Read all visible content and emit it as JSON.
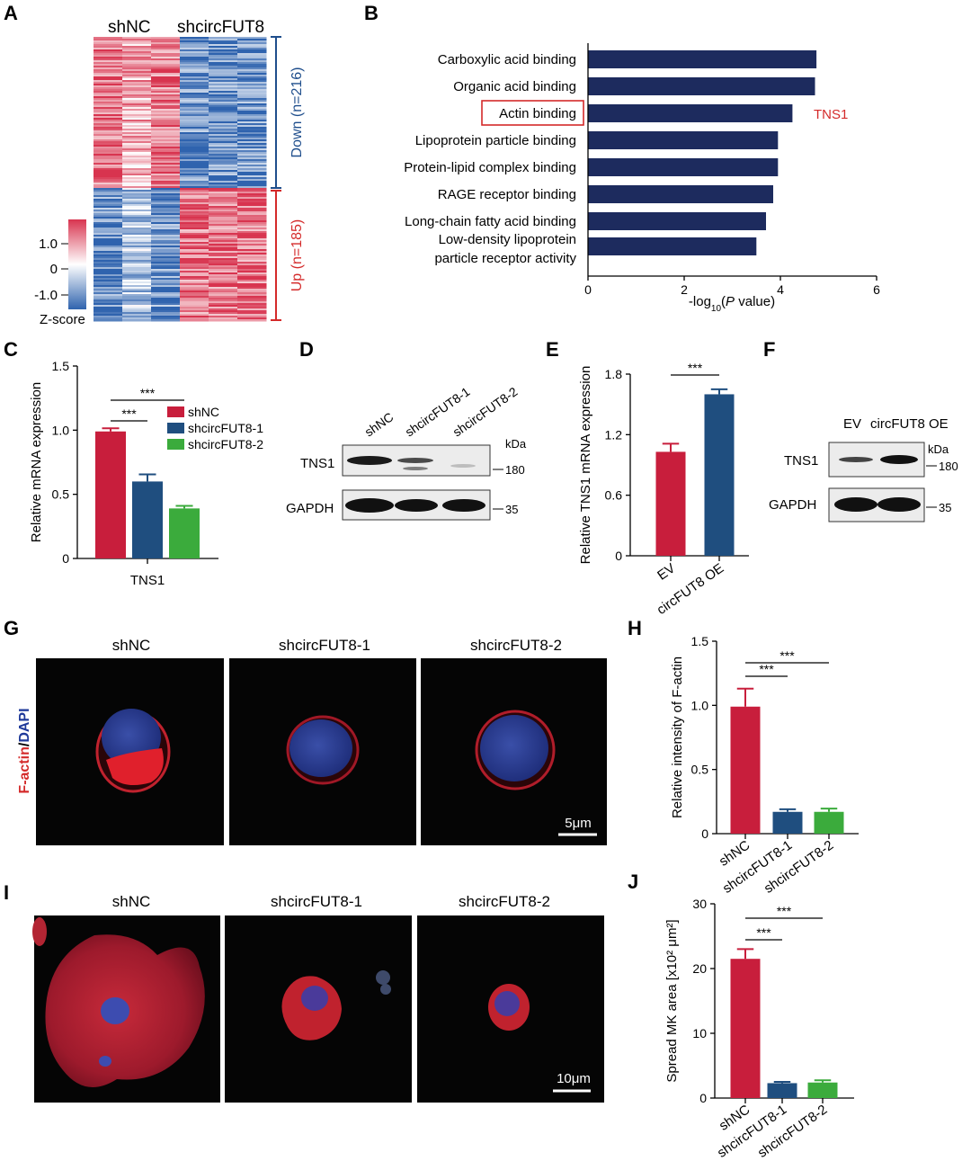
{
  "colors": {
    "shNC": "#c81e3c",
    "sh1": "#1f4e7f",
    "sh2": "#3bab3c",
    "go_bar": "#1d2b5e",
    "down": "#1f4e8c",
    "up": "#d42a2a",
    "highlight": "#d42a2a",
    "heat_hi": "#d8344f",
    "heat_lo": "#3b6fb6"
  },
  "panels": {
    "A": {
      "letter": "A",
      "col_labels": [
        "shNC",
        "shcircFUT8"
      ],
      "down_label": "Down (n=216)",
      "up_label": "Up (n=185)",
      "legend_ticks": [
        "1.0",
        "0",
        "-1.0"
      ],
      "legend_title": "Z-score"
    },
    "B": {
      "letter": "B"
    },
    "C": {
      "letter": "C"
    },
    "D": {
      "letter": "D",
      "lanes": [
        "shNC",
        "shcircFUT8-1",
        "shcircFUT8-2"
      ],
      "kda": "kDa",
      "rows": [
        "TNS1",
        "GAPDH"
      ],
      "markers": [
        "180",
        "35"
      ]
    },
    "E": {
      "letter": "E"
    },
    "F": {
      "letter": "F",
      "lanes": [
        "EV",
        "circFUT8 OE"
      ],
      "kda": "kDa",
      "rows": [
        "TNS1",
        "GAPDH"
      ],
      "markers": [
        "180",
        "35"
      ]
    },
    "G": {
      "letter": "G",
      "titles": [
        "shNC",
        "shcircFUT8-1",
        "shcircFUT8-2"
      ],
      "stain_red": "F-actin",
      "stain_sep": "/",
      "stain_blue": "DAPI",
      "scale": "5μm"
    },
    "H": {
      "letter": "H"
    },
    "I": {
      "letter": "I",
      "titles": [
        "shNC",
        "shcircFUT8-1",
        "shcircFUT8-2"
      ],
      "scale": "10μm"
    },
    "J": {
      "letter": "J"
    }
  },
  "chart_data": [
    {
      "panel": "B",
      "type": "bar",
      "orientation": "horizontal",
      "categories": [
        "Carboxylic acid binding",
        "Organic acid binding",
        "Actin binding",
        "Lipoprotein particle binding",
        "Protein-lipid complex binding",
        "RAGE receptor binding",
        "Long-chain fatty acid binding",
        "Low-density lipoprotein particle receptor activity"
      ],
      "category_lines": [
        [
          "Carboxylic acid binding"
        ],
        [
          "Organic acid binding"
        ],
        [
          "Actin binding"
        ],
        [
          "Lipoprotein particle binding"
        ],
        [
          "Protein-lipid complex binding"
        ],
        [
          "RAGE receptor binding"
        ],
        [
          "Long-chain fatty acid binding"
        ],
        [
          "Low-density lipoprotein",
          "particle receptor activity"
        ]
      ],
      "values": [
        4.75,
        4.72,
        4.25,
        3.95,
        3.95,
        3.85,
        3.7,
        3.5
      ],
      "highlight_index": 2,
      "annotation": "TNS1",
      "xlim": [
        0,
        6
      ],
      "xticks": [
        "0",
        "2",
        "4",
        "6"
      ],
      "xlabel": "-log10(P value)"
    },
    {
      "panel": "C",
      "type": "bar",
      "categories": [
        "TNS1"
      ],
      "series": [
        {
          "name": "shNC",
          "values": [
            0.99
          ],
          "err": [
            0.025
          ]
        },
        {
          "name": "shcircFUT8-1",
          "values": [
            0.6
          ],
          "err": [
            0.055
          ]
        },
        {
          "name": "shcircFUT8-2",
          "values": [
            0.39
          ],
          "err": [
            0.02
          ]
        }
      ],
      "ylim": [
        0,
        1.5
      ],
      "yticks": [
        "0",
        "0.5",
        "1.0",
        "1.5"
      ],
      "ylabel": "Relative mRNA expression",
      "significance": [
        "***",
        "***"
      ]
    },
    {
      "panel": "E",
      "type": "bar",
      "categories": [
        "EV",
        "circFUT8 OE"
      ],
      "values": [
        1.03,
        1.6
      ],
      "err": [
        0.08,
        0.05
      ],
      "ylim": [
        0,
        1.8
      ],
      "yticks": [
        "0",
        "0.6",
        "1.2",
        "1.8"
      ],
      "ylabel": "Relative TNS1 mRNA expression",
      "significance": [
        "***"
      ]
    },
    {
      "panel": "H",
      "type": "bar",
      "categories": [
        "shNC",
        "shcircFUT8-1",
        "shcircFUT8-2"
      ],
      "values": [
        0.99,
        0.17,
        0.17
      ],
      "err": [
        0.14,
        0.02,
        0.025
      ],
      "ylim": [
        0,
        1.5
      ],
      "yticks": [
        "0",
        "0.5",
        "1.0",
        "1.5"
      ],
      "ylabel": "Relative intensity of F-actin",
      "significance": [
        "***",
        "***"
      ]
    },
    {
      "panel": "J",
      "type": "bar",
      "categories": [
        "shNC",
        "shcircFUT8-1",
        "shcircFUT8-2"
      ],
      "values": [
        21.5,
        2.3,
        2.4
      ],
      "err": [
        1.5,
        0.2,
        0.35
      ],
      "ylim": [
        0,
        30
      ],
      "yticks": [
        "0",
        "10",
        "20",
        "30"
      ],
      "ylabel": "Spread MK area [x10² μm²]",
      "significance": [
        "***",
        "***"
      ]
    }
  ]
}
